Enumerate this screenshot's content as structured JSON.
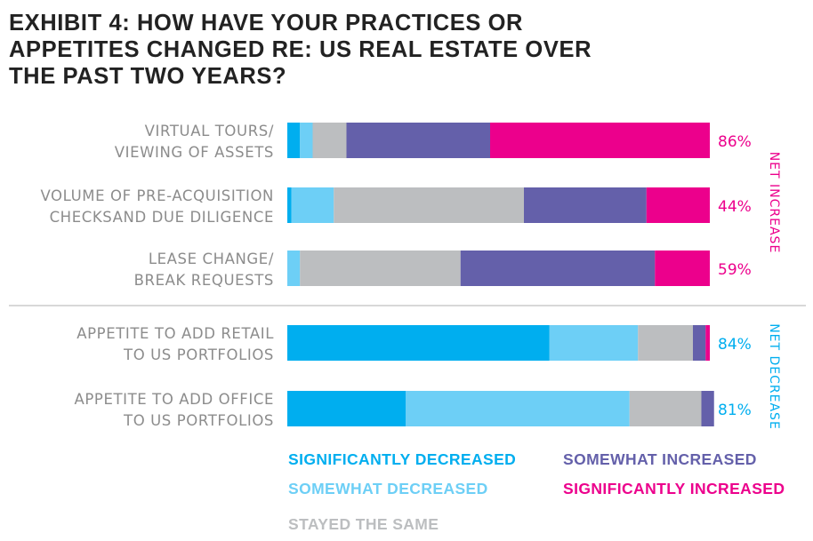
{
  "chart_data": {
    "type": "bar",
    "stacked": true,
    "orientation": "horizontal",
    "title_lines": [
      "EXHIBIT 4: HOW HAVE YOUR PRACTICES OR",
      "APPETITES CHANGED RE: US REAL ESTATE OVER",
      "THE PAST TWO YEARS?"
    ],
    "categories": [
      {
        "lines": [
          "VIRTUAL TOURS/",
          "VIEWING OF ASSETS"
        ],
        "net_label": "86%"
      },
      {
        "lines": [
          "VOLUME OF PRE-ACQUISITION",
          "CHECKSAND DUE DILIGENCE"
        ],
        "net_label": "44%"
      },
      {
        "lines": [
          "LEASE CHANGE/",
          "BREAK REQUESTS"
        ],
        "net_label": "59%"
      },
      {
        "lines": [
          "APPETITE TO ADD RETAIL",
          "TO US PORTFOLIOS"
        ],
        "net_label": "84%"
      },
      {
        "lines": [
          "APPETITE TO ADD OFFICE",
          "TO US PORTFOLIOS"
        ],
        "net_label": "81%"
      }
    ],
    "series": [
      {
        "name": "SIGNIFICANTLY DECREASED",
        "color": "#00aeef",
        "values": [
          3,
          1,
          0,
          62,
          28
        ]
      },
      {
        "name": "SOMEWHAT DECREASED",
        "color": "#6dcff6",
        "values": [
          3,
          10,
          3,
          21,
          53
        ]
      },
      {
        "name": "STAYED THE SAME",
        "color": "#bcbec0",
        "values": [
          8,
          45,
          38,
          13,
          17
        ]
      },
      {
        "name": "SOMEWHAT INCREASED",
        "color": "#6460aa",
        "values": [
          34,
          29,
          46,
          3,
          3
        ]
      },
      {
        "name": "SIGNIFICANTLY INCREASED",
        "color": "#ec008c",
        "values": [
          52,
          15,
          13,
          1,
          0
        ]
      }
    ],
    "xlim": [
      0,
      100
    ],
    "groups": [
      {
        "label": "NET INCREASE",
        "color": "#ec008c",
        "categories": [
          0,
          1,
          2
        ]
      },
      {
        "label": "NET DECREASE",
        "color": "#00aeef",
        "categories": [
          3,
          4
        ]
      }
    ],
    "divider_color": "#cccccc"
  }
}
